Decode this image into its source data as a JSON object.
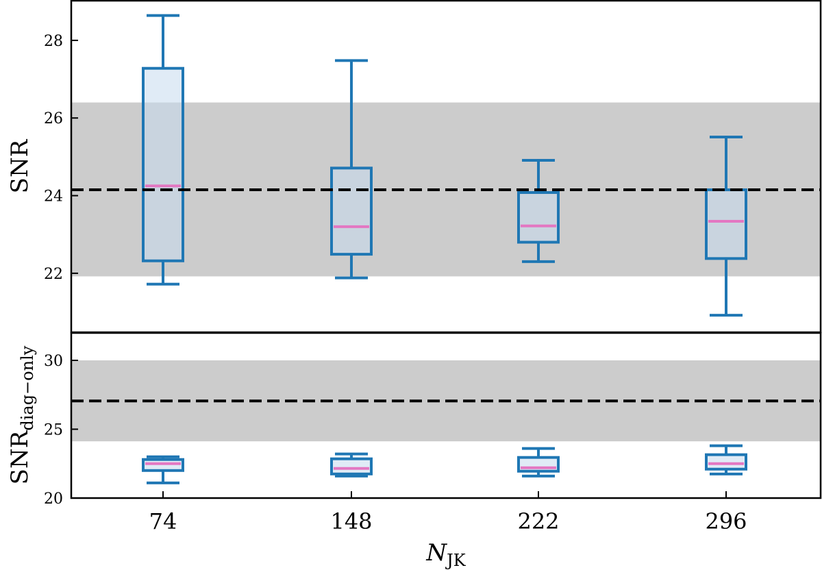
{
  "chart_data": [
    {
      "type": "box",
      "panel": "top",
      "title": "",
      "xlabel": "",
      "ylabel": "SNR",
      "ylim": [
        20.48,
        29.04
      ],
      "yticks": [
        22,
        24,
        26,
        28
      ],
      "categories": [
        "74",
        "148",
        "222",
        "296"
      ],
      "reference_line": {
        "value": 24.15,
        "style": "dashed",
        "color": "#000000"
      },
      "reference_band": {
        "low": 21.92,
        "high": 26.4,
        "color": "#cccccc"
      },
      "boxes": [
        {
          "x": "74",
          "whislo": 21.72,
          "q1": 22.32,
          "med": 24.25,
          "q3": 27.28,
          "whishi": 28.64
        },
        {
          "x": "148",
          "whislo": 21.88,
          "q1": 22.49,
          "med": 23.2,
          "q3": 24.71,
          "whishi": 27.48
        },
        {
          "x": "222",
          "whislo": 22.3,
          "q1": 22.8,
          "med": 23.22,
          "q3": 24.08,
          "whishi": 24.91
        },
        {
          "x": "296",
          "whislo": 20.92,
          "q1": 22.38,
          "med": 23.34,
          "q3": 24.15,
          "whishi": 25.51
        }
      ]
    },
    {
      "type": "box",
      "panel": "bottom",
      "title": "",
      "xlabel": "N_JK",
      "ylabel": "SNR_diag-only",
      "ylim": [
        20,
        32.04
      ],
      "yticks": [
        20,
        25,
        30
      ],
      "categories": [
        "74",
        "148",
        "222",
        "296"
      ],
      "reference_line": {
        "value": 27.05,
        "style": "dashed",
        "color": "#000000"
      },
      "reference_band": {
        "low": 24.12,
        "high": 30.0,
        "color": "#cccccc"
      },
      "boxes": [
        {
          "x": "74",
          "whislo": 21.1,
          "q1": 22.0,
          "med": 22.5,
          "q3": 22.8,
          "whishi": 23.0
        },
        {
          "x": "148",
          "whislo": 21.6,
          "q1": 21.75,
          "med": 22.15,
          "q3": 22.85,
          "whishi": 23.2
        },
        {
          "x": "222",
          "whislo": 21.6,
          "q1": 21.95,
          "med": 22.2,
          "q3": 22.95,
          "whishi": 23.6
        },
        {
          "x": "296",
          "whislo": 21.75,
          "q1": 22.1,
          "med": 22.5,
          "q3": 23.15,
          "whishi": 23.8
        }
      ]
    }
  ],
  "labels": {
    "top_ylabel": "SNR",
    "bottom_ylabel_main": "SNR",
    "bottom_ylabel_sub": "diag−only",
    "xlabel_main": "N",
    "xlabel_sub": "JK"
  },
  "colors": {
    "box_edge": "#1f77b4",
    "box_fill": "#c6dbef",
    "box_fill_opacity": 0.55,
    "median": "#e377c2",
    "band": "#cccccc",
    "reference": "#000000"
  }
}
